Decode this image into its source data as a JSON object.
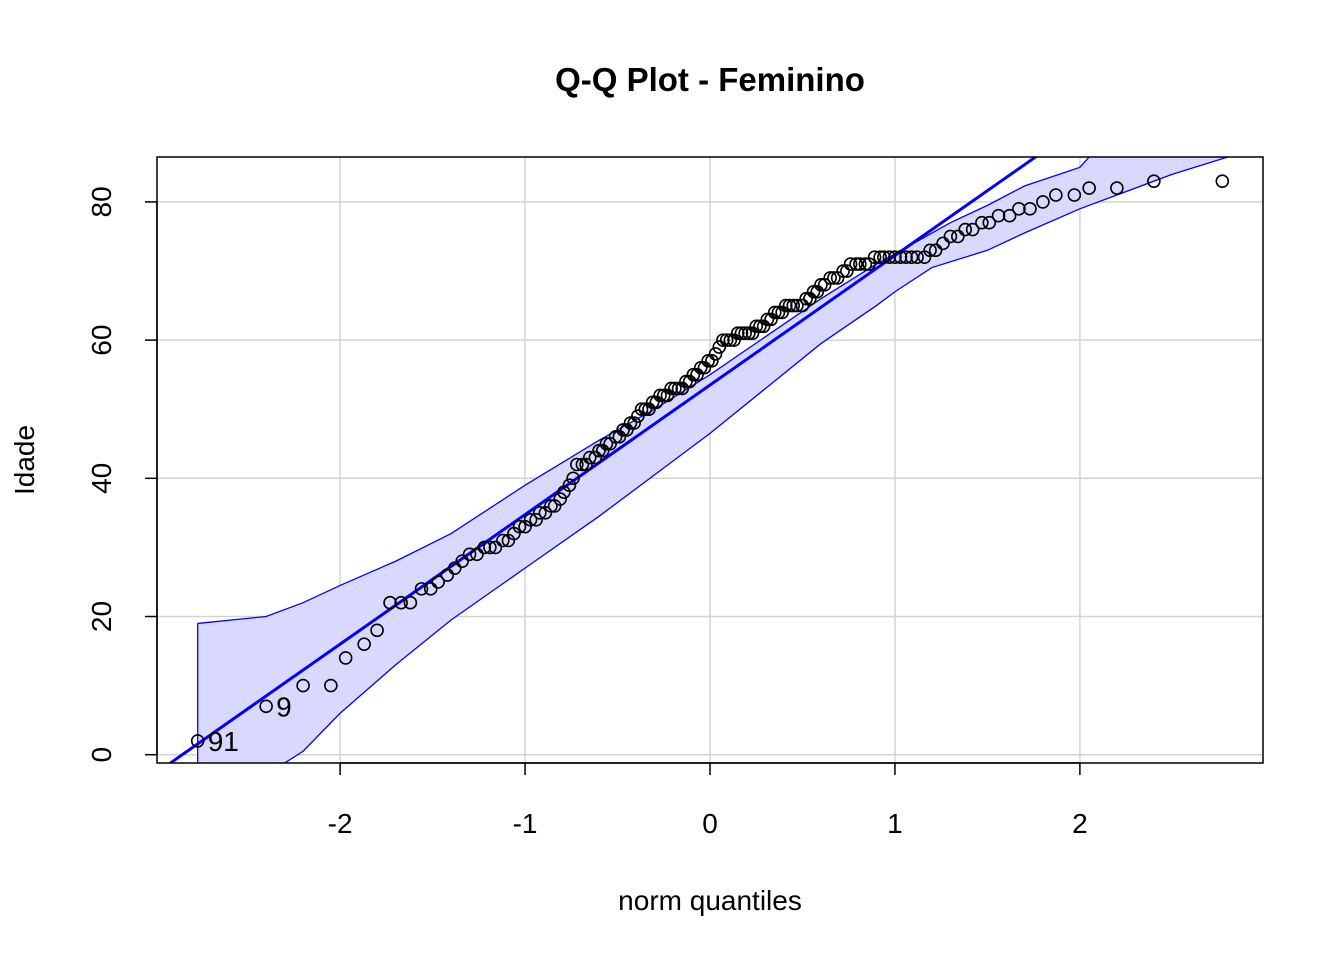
{
  "chart_data": {
    "type": "scatter",
    "title": "Q-Q Plot - Feminino",
    "xlabel": "norm quantiles",
    "ylabel": "Idade",
    "xlim": [
      -2.99,
      2.99
    ],
    "ylim": [
      -1.2,
      86.5
    ],
    "xticks": [
      -2,
      -1,
      0,
      1,
      2
    ],
    "xtick_labels": [
      "-2",
      "-1",
      "0",
      "1",
      "2"
    ],
    "yticks": [
      0,
      20,
      40,
      60,
      80
    ],
    "ytick_labels": [
      "0",
      "20",
      "40",
      "60",
      "80"
    ],
    "grid": true,
    "reference_line": {
      "intercept": 53.5,
      "slope": 18.75,
      "color": "#0000FF"
    },
    "envelope": {
      "fill": "#D9D9FF",
      "stroke": "#0000FF",
      "upper": [
        [
          -2.77,
          19
        ],
        [
          -2.4,
          20
        ],
        [
          -2.2,
          22
        ],
        [
          -2.0,
          24.5
        ],
        [
          -1.7,
          28
        ],
        [
          -1.4,
          32
        ],
        [
          -1.0,
          39
        ],
        [
          -0.6,
          45.5
        ],
        [
          -0.3,
          50
        ],
        [
          0,
          55
        ],
        [
          0.3,
          60.5
        ],
        [
          0.6,
          66
        ],
        [
          0.9,
          71
        ],
        [
          1.1,
          74
        ],
        [
          1.3,
          77
        ],
        [
          1.5,
          79.5
        ],
        [
          1.7,
          82.3
        ],
        [
          2.0,
          85
        ],
        [
          2.05,
          86.5
        ]
      ],
      "lower": [
        [
          -2.77,
          -2
        ],
        [
          -2.55,
          -2
        ],
        [
          -2.3,
          -1.2
        ],
        [
          -2.2,
          0.5
        ],
        [
          -2.0,
          6
        ],
        [
          -1.7,
          13
        ],
        [
          -1.4,
          19.5
        ],
        [
          -1.0,
          27
        ],
        [
          -0.6,
          34.5
        ],
        [
          -0.3,
          40.5
        ],
        [
          0,
          46.5
        ],
        [
          0.3,
          53
        ],
        [
          0.6,
          59.5
        ],
        [
          0.9,
          65
        ],
        [
          1.0,
          67
        ],
        [
          1.2,
          70.5
        ],
        [
          1.5,
          73
        ],
        [
          1.7,
          75.5
        ],
        [
          2.0,
          79
        ],
        [
          2.2,
          81
        ],
        [
          2.5,
          84
        ],
        [
          2.8,
          86.5
        ]
      ]
    },
    "series": [
      {
        "points": [
          [
            -2.77,
            2
          ],
          [
            -2.4,
            7
          ],
          [
            -2.2,
            10
          ],
          [
            -2.05,
            10
          ],
          [
            -1.97,
            14
          ],
          [
            -1.87,
            16
          ],
          [
            -1.8,
            18
          ],
          [
            -1.73,
            22
          ],
          [
            -1.67,
            22
          ],
          [
            -1.62,
            22
          ],
          [
            -1.56,
            24
          ],
          [
            -1.51,
            24
          ],
          [
            -1.47,
            25
          ],
          [
            -1.42,
            26
          ],
          [
            -1.38,
            27
          ],
          [
            -1.34,
            28
          ],
          [
            -1.3,
            29
          ],
          [
            -1.26,
            29
          ],
          [
            -1.22,
            30
          ],
          [
            -1.19,
            30
          ],
          [
            -1.16,
            30
          ],
          [
            -1.12,
            31
          ],
          [
            -1.09,
            31
          ],
          [
            -1.06,
            32
          ],
          [
            -1.03,
            33
          ],
          [
            -1.0,
            33
          ],
          [
            -0.97,
            34
          ],
          [
            -0.94,
            34
          ],
          [
            -0.92,
            35
          ],
          [
            -0.89,
            35
          ],
          [
            -0.86,
            36
          ],
          [
            -0.84,
            36
          ],
          [
            -0.81,
            37
          ],
          [
            -0.79,
            38
          ],
          [
            -0.76,
            39
          ],
          [
            -0.74,
            40
          ],
          [
            -0.72,
            42
          ],
          [
            -0.69,
            42
          ],
          [
            -0.67,
            42
          ],
          [
            -0.65,
            43
          ],
          [
            -0.62,
            43
          ],
          [
            -0.6,
            44
          ],
          [
            -0.58,
            44
          ],
          [
            -0.56,
            45
          ],
          [
            -0.54,
            45
          ],
          [
            -0.51,
            46
          ],
          [
            -0.49,
            46
          ],
          [
            -0.47,
            47
          ],
          [
            -0.45,
            47
          ],
          [
            -0.43,
            48
          ],
          [
            -0.41,
            48
          ],
          [
            -0.39,
            49
          ],
          [
            -0.37,
            50
          ],
          [
            -0.35,
            50
          ],
          [
            -0.33,
            50
          ],
          [
            -0.31,
            51
          ],
          [
            -0.29,
            51
          ],
          [
            -0.27,
            52
          ],
          [
            -0.25,
            52
          ],
          [
            -0.23,
            52
          ],
          [
            -0.21,
            53
          ],
          [
            -0.19,
            53
          ],
          [
            -0.17,
            53
          ],
          [
            -0.15,
            53
          ],
          [
            -0.13,
            54
          ],
          [
            -0.11,
            54
          ],
          [
            -0.09,
            55
          ],
          [
            -0.07,
            55
          ],
          [
            -0.05,
            56
          ],
          [
            -0.03,
            56
          ],
          [
            -0.01,
            57
          ],
          [
            0.01,
            57
          ],
          [
            0.03,
            58
          ],
          [
            0.05,
            59
          ],
          [
            0.07,
            60
          ],
          [
            0.09,
            60
          ],
          [
            0.11,
            60
          ],
          [
            0.13,
            60
          ],
          [
            0.15,
            61
          ],
          [
            0.17,
            61
          ],
          [
            0.19,
            61
          ],
          [
            0.21,
            61
          ],
          [
            0.23,
            61
          ],
          [
            0.25,
            62
          ],
          [
            0.27,
            62
          ],
          [
            0.29,
            62
          ],
          [
            0.31,
            63
          ],
          [
            0.33,
            63
          ],
          [
            0.35,
            64
          ],
          [
            0.37,
            64
          ],
          [
            0.39,
            64
          ],
          [
            0.41,
            65
          ],
          [
            0.43,
            65
          ],
          [
            0.45,
            65
          ],
          [
            0.47,
            65
          ],
          [
            0.5,
            65
          ],
          [
            0.52,
            66
          ],
          [
            0.54,
            66
          ],
          [
            0.56,
            67
          ],
          [
            0.58,
            67
          ],
          [
            0.6,
            68
          ],
          [
            0.62,
            68
          ],
          [
            0.65,
            69
          ],
          [
            0.67,
            69
          ],
          [
            0.69,
            69
          ],
          [
            0.72,
            70
          ],
          [
            0.74,
            70
          ],
          [
            0.76,
            71
          ],
          [
            0.79,
            71
          ],
          [
            0.81,
            71
          ],
          [
            0.84,
            71
          ],
          [
            0.86,
            71
          ],
          [
            0.89,
            72
          ],
          [
            0.92,
            72
          ],
          [
            0.94,
            72
          ],
          [
            0.97,
            72
          ],
          [
            1.0,
            72
          ],
          [
            1.03,
            72
          ],
          [
            1.06,
            72
          ],
          [
            1.09,
            72
          ],
          [
            1.12,
            72
          ],
          [
            1.16,
            72
          ],
          [
            1.19,
            73
          ],
          [
            1.22,
            73
          ],
          [
            1.26,
            74
          ],
          [
            1.3,
            75
          ],
          [
            1.34,
            75
          ],
          [
            1.38,
            76
          ],
          [
            1.42,
            76
          ],
          [
            1.47,
            77
          ],
          [
            1.51,
            77
          ],
          [
            1.56,
            78
          ],
          [
            1.62,
            78
          ],
          [
            1.67,
            79
          ],
          [
            1.73,
            79
          ],
          [
            1.8,
            80
          ],
          [
            1.87,
            81
          ],
          [
            1.97,
            81
          ],
          [
            2.05,
            82
          ],
          [
            2.2,
            82
          ],
          [
            2.4,
            83
          ],
          [
            2.77,
            83
          ]
        ]
      }
    ],
    "point_labels": [
      {
        "x": -2.77,
        "y": 2,
        "text": "91"
      },
      {
        "x": -2.4,
        "y": 7,
        "text": "9"
      }
    ]
  }
}
